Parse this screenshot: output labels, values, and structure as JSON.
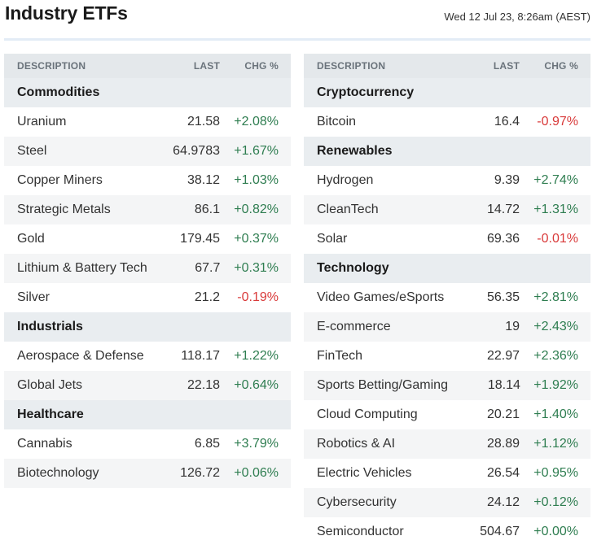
{
  "header": {
    "title": "Industry ETFs",
    "timestamp": "Wed 12 Jul 23, 8:26am (AEST)"
  },
  "columns": {
    "description": "DESCRIPTION",
    "last": "LAST",
    "change": "CHG %"
  },
  "left_table": [
    {
      "type": "category",
      "label": "Commodities"
    },
    {
      "type": "item",
      "name": "Uranium",
      "last": "21.58",
      "change": "+2.08%",
      "direction": "up"
    },
    {
      "type": "item",
      "name": "Steel",
      "last": "64.9783",
      "change": "+1.67%",
      "direction": "up"
    },
    {
      "type": "item",
      "name": "Copper Miners",
      "last": "38.12",
      "change": "+1.03%",
      "direction": "up"
    },
    {
      "type": "item",
      "name": "Strategic Metals",
      "last": "86.1",
      "change": "+0.82%",
      "direction": "up"
    },
    {
      "type": "item",
      "name": "Gold",
      "last": "179.45",
      "change": "+0.37%",
      "direction": "up"
    },
    {
      "type": "item",
      "name": "Lithium & Battery Tech",
      "last": "67.7",
      "change": "+0.31%",
      "direction": "up"
    },
    {
      "type": "item",
      "name": "Silver",
      "last": "21.2",
      "change": "-0.19%",
      "direction": "down"
    },
    {
      "type": "category",
      "label": "Industrials"
    },
    {
      "type": "item",
      "name": "Aerospace & Defense",
      "last": "118.17",
      "change": "+1.22%",
      "direction": "up"
    },
    {
      "type": "item",
      "name": "Global Jets",
      "last": "22.18",
      "change": "+0.64%",
      "direction": "up"
    },
    {
      "type": "category",
      "label": "Healthcare"
    },
    {
      "type": "item",
      "name": "Cannabis",
      "last": "6.85",
      "change": "+3.79%",
      "direction": "up"
    },
    {
      "type": "item",
      "name": "Biotechnology",
      "last": "126.72",
      "change": "+0.06%",
      "direction": "up"
    }
  ],
  "right_table": [
    {
      "type": "category",
      "label": "Cryptocurrency"
    },
    {
      "type": "item",
      "name": "Bitcoin",
      "last": "16.4",
      "change": "-0.97%",
      "direction": "down"
    },
    {
      "type": "category",
      "label": "Renewables"
    },
    {
      "type": "item",
      "name": "Hydrogen",
      "last": "9.39",
      "change": "+2.74%",
      "direction": "up"
    },
    {
      "type": "item",
      "name": "CleanTech",
      "last": "14.72",
      "change": "+1.31%",
      "direction": "up"
    },
    {
      "type": "item",
      "name": "Solar",
      "last": "69.36",
      "change": "-0.01%",
      "direction": "down"
    },
    {
      "type": "category",
      "label": "Technology"
    },
    {
      "type": "item",
      "name": "Video Games/eSports",
      "last": "56.35",
      "change": "+2.81%",
      "direction": "up"
    },
    {
      "type": "item",
      "name": "E-commerce",
      "last": "19",
      "change": "+2.43%",
      "direction": "up"
    },
    {
      "type": "item",
      "name": "FinTech",
      "last": "22.97",
      "change": "+2.36%",
      "direction": "up"
    },
    {
      "type": "item",
      "name": "Sports Betting/Gaming",
      "last": "18.14",
      "change": "+1.92%",
      "direction": "up"
    },
    {
      "type": "item",
      "name": "Cloud Computing",
      "last": "20.21",
      "change": "+1.40%",
      "direction": "up"
    },
    {
      "type": "item",
      "name": "Robotics & AI",
      "last": "28.89",
      "change": "+1.12%",
      "direction": "up"
    },
    {
      "type": "item",
      "name": "Electric Vehicles",
      "last": "26.54",
      "change": "+0.95%",
      "direction": "up"
    },
    {
      "type": "item",
      "name": "Cybersecurity",
      "last": "24.12",
      "change": "+0.12%",
      "direction": "up"
    },
    {
      "type": "item",
      "name": "Semiconductor",
      "last": "504.67",
      "change": "+0.00%",
      "direction": "up"
    }
  ],
  "colors": {
    "up": "#2e7d50",
    "down": "#d93a3a",
    "header_bg": "#e4e8eb",
    "category_bg": "#e9edf0",
    "alt_row_bg": "#f4f5f6"
  }
}
